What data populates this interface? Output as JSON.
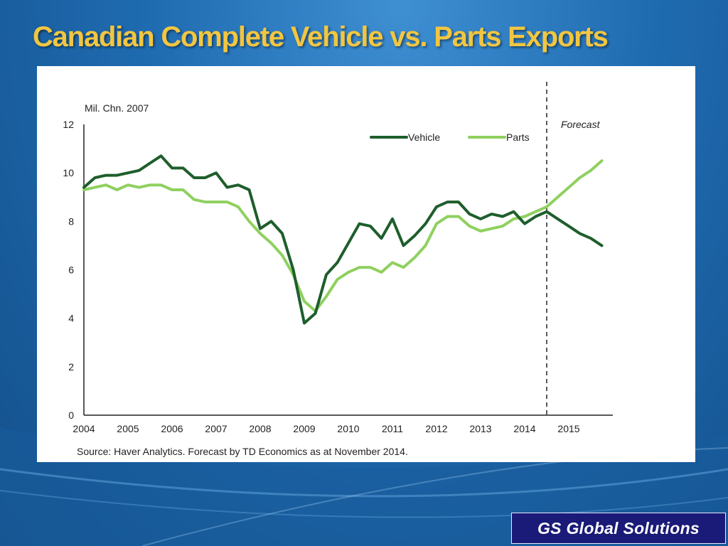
{
  "slide": {
    "title": "Canadian Complete Vehicle vs. Parts Exports",
    "brand": "GS Global Solutions"
  },
  "colors": {
    "vehicle": "#1e5e2c",
    "parts": "#8fd05f",
    "title": "#f2c641",
    "brand_bg": "#1a1a78"
  },
  "chart_data": {
    "type": "line",
    "unit_label": "Mil. Chn. 2007",
    "forecast_label": "Forecast",
    "forecast_start": "2014Q3",
    "source": "Source: Haver Analytics. Forecast by TD Economics as at November 2014.",
    "ylim": [
      0,
      12
    ],
    "y_ticks": [
      0,
      2,
      4,
      6,
      8,
      10,
      12
    ],
    "x_ticks": [
      "2004",
      "2005",
      "2006",
      "2007",
      "2008",
      "2009",
      "2010",
      "2011",
      "2012",
      "2013",
      "2014",
      "2015"
    ],
    "x": [
      "2004Q1",
      "2004Q2",
      "2004Q3",
      "2004Q4",
      "2005Q1",
      "2005Q2",
      "2005Q3",
      "2005Q4",
      "2006Q1",
      "2006Q2",
      "2006Q3",
      "2006Q4",
      "2007Q1",
      "2007Q2",
      "2007Q3",
      "2007Q4",
      "2008Q1",
      "2008Q2",
      "2008Q3",
      "2008Q4",
      "2009Q1",
      "2009Q2",
      "2009Q3",
      "2009Q4",
      "2010Q1",
      "2010Q2",
      "2010Q3",
      "2010Q4",
      "2011Q1",
      "2011Q2",
      "2011Q3",
      "2011Q4",
      "2012Q1",
      "2012Q2",
      "2012Q3",
      "2012Q4",
      "2013Q1",
      "2013Q2",
      "2013Q3",
      "2013Q4",
      "2014Q1",
      "2014Q2",
      "2014Q3",
      "2014Q4",
      "2015Q1",
      "2015Q2",
      "2015Q3",
      "2015Q4"
    ],
    "legend": [
      "Vehicle",
      "Parts"
    ],
    "series": [
      {
        "name": "Vehicle",
        "values": [
          9.4,
          9.8,
          9.9,
          9.9,
          10.0,
          10.1,
          10.4,
          10.7,
          10.2,
          10.2,
          9.8,
          9.8,
          10.0,
          9.4,
          9.5,
          9.3,
          7.7,
          8.0,
          7.5,
          6.0,
          3.8,
          4.2,
          5.8,
          6.3,
          7.1,
          7.9,
          7.8,
          7.3,
          8.1,
          7.0,
          7.4,
          7.9,
          8.6,
          8.8,
          8.8,
          8.3,
          8.1,
          8.3,
          8.2,
          8.4,
          7.9,
          8.2,
          8.4,
          8.1,
          7.8,
          7.5,
          7.3,
          7.0
        ]
      },
      {
        "name": "Parts",
        "values": [
          9.3,
          9.4,
          9.5,
          9.3,
          9.5,
          9.4,
          9.5,
          9.5,
          9.3,
          9.3,
          8.9,
          8.8,
          8.8,
          8.8,
          8.6,
          8.0,
          7.5,
          7.1,
          6.6,
          5.8,
          4.7,
          4.3,
          4.9,
          5.6,
          5.9,
          6.1,
          6.1,
          5.9,
          6.3,
          6.1,
          6.5,
          7.0,
          7.9,
          8.2,
          8.2,
          7.8,
          7.6,
          7.7,
          7.8,
          8.1,
          8.2,
          8.4,
          8.6,
          9.0,
          9.4,
          9.8,
          10.1,
          10.5
        ]
      }
    ]
  }
}
